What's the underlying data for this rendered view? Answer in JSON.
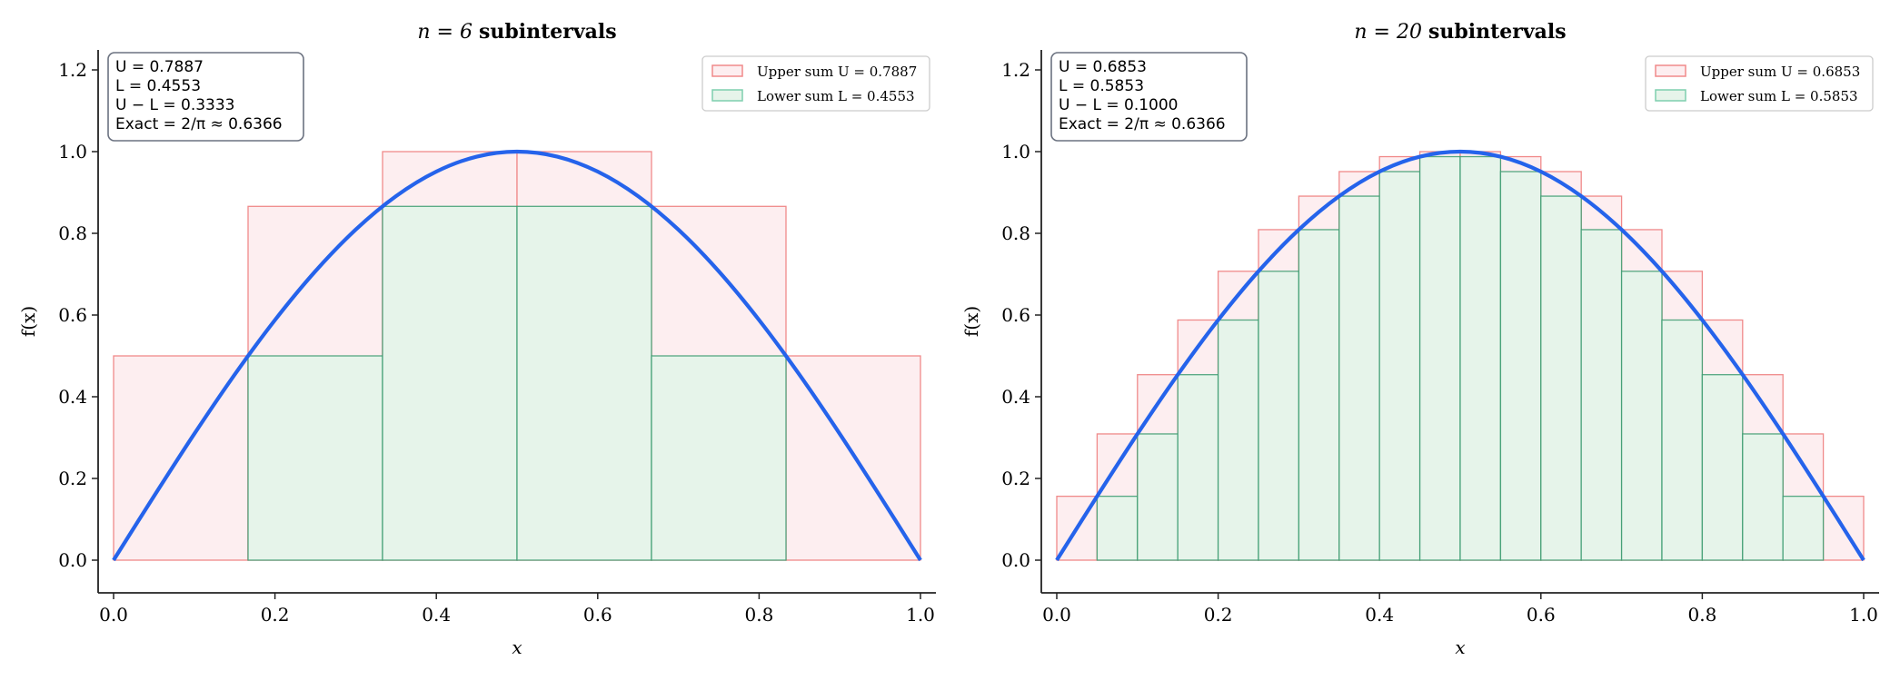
{
  "chart_data": [
    {
      "type": "bar",
      "title_math": "n = 6",
      "title_text": "subintervals",
      "xlabel": "x",
      "ylabel": "f(x)",
      "xlim": [
        -0.02,
        1.02
      ],
      "ylim": [
        -0.08,
        1.25
      ],
      "xticks": [
        "0.0",
        "0.2",
        "0.4",
        "0.6",
        "0.8",
        "1.0"
      ],
      "yticks": [
        "0.0",
        "0.2",
        "0.4",
        "0.6",
        "0.8",
        "1.0",
        "1.2"
      ],
      "grid": false,
      "legend_position": "top-right",
      "n": 6,
      "upper_heights": [
        0.5,
        0.866,
        1.0,
        1.0,
        0.866,
        0.5
      ],
      "lower_heights": [
        0.0,
        0.5,
        0.866,
        0.866,
        0.5,
        0.0
      ],
      "legend": [
        "Upper sum U = 0.7887",
        "Lower sum L = 0.4553"
      ],
      "annotation": [
        "U = 0.7887",
        "L = 0.4553",
        "U − L = 0.3333",
        "Exact  = 2/π ≈ 0.6366"
      ],
      "curve": {
        "x": [
          0,
          0.05,
          0.1,
          0.15,
          0.2,
          0.25,
          0.3,
          0.35,
          0.4,
          0.45,
          0.5,
          0.55,
          0.6,
          0.65,
          0.7,
          0.75,
          0.8,
          0.85,
          0.9,
          0.95,
          1
        ],
        "y": [
          0,
          0.1564,
          0.309,
          0.454,
          0.5878,
          0.7071,
          0.809,
          0.891,
          0.9511,
          0.9877,
          1,
          0.9877,
          0.9511,
          0.891,
          0.809,
          0.7071,
          0.5878,
          0.454,
          0.309,
          0.1564,
          0
        ]
      }
    },
    {
      "type": "bar",
      "title_math": "n = 20",
      "title_text": "subintervals",
      "xlabel": "x",
      "ylabel": "f(x)",
      "xlim": [
        -0.02,
        1.02
      ],
      "ylim": [
        -0.08,
        1.25
      ],
      "xticks": [
        "0.0",
        "0.2",
        "0.4",
        "0.6",
        "0.8",
        "1.0"
      ],
      "yticks": [
        "0.0",
        "0.2",
        "0.4",
        "0.6",
        "0.8",
        "1.0",
        "1.2"
      ],
      "grid": false,
      "legend_position": "top-right",
      "n": 20,
      "upper_heights": [
        0.1564,
        0.309,
        0.454,
        0.5878,
        0.7071,
        0.809,
        0.891,
        0.9511,
        0.9877,
        1,
        1,
        0.9877,
        0.9511,
        0.891,
        0.809,
        0.7071,
        0.5878,
        0.454,
        0.309,
        0.1564
      ],
      "lower_heights": [
        0,
        0.1564,
        0.309,
        0.454,
        0.5878,
        0.7071,
        0.809,
        0.891,
        0.9511,
        0.9877,
        0.9877,
        0.9511,
        0.891,
        0.809,
        0.7071,
        0.5878,
        0.454,
        0.309,
        0.1564,
        0
      ],
      "legend": [
        "Upper sum U = 0.6853",
        "Lower sum L = 0.5853"
      ],
      "annotation": [
        "U = 0.6853",
        "L = 0.5853",
        "U − L = 0.1000",
        "Exact  = 2/π ≈ 0.6366"
      ],
      "curve": {
        "x": [
          0,
          0.05,
          0.1,
          0.15,
          0.2,
          0.25,
          0.3,
          0.35,
          0.4,
          0.45,
          0.5,
          0.55,
          0.6,
          0.65,
          0.7,
          0.75,
          0.8,
          0.85,
          0.9,
          0.95,
          1
        ],
        "y": [
          0,
          0.1564,
          0.309,
          0.454,
          0.5878,
          0.7071,
          0.809,
          0.891,
          0.9511,
          0.9877,
          1,
          0.9877,
          0.9511,
          0.891,
          0.809,
          0.7071,
          0.5878,
          0.454,
          0.309,
          0.1564,
          0
        ]
      }
    }
  ],
  "colors": {
    "upper_fill": "#fdeef0",
    "upper_edge": "#f08a8a",
    "lower_fill": "#e6f4ea",
    "lower_edge": "#3a9a6e",
    "curve": "#2563eb"
  }
}
